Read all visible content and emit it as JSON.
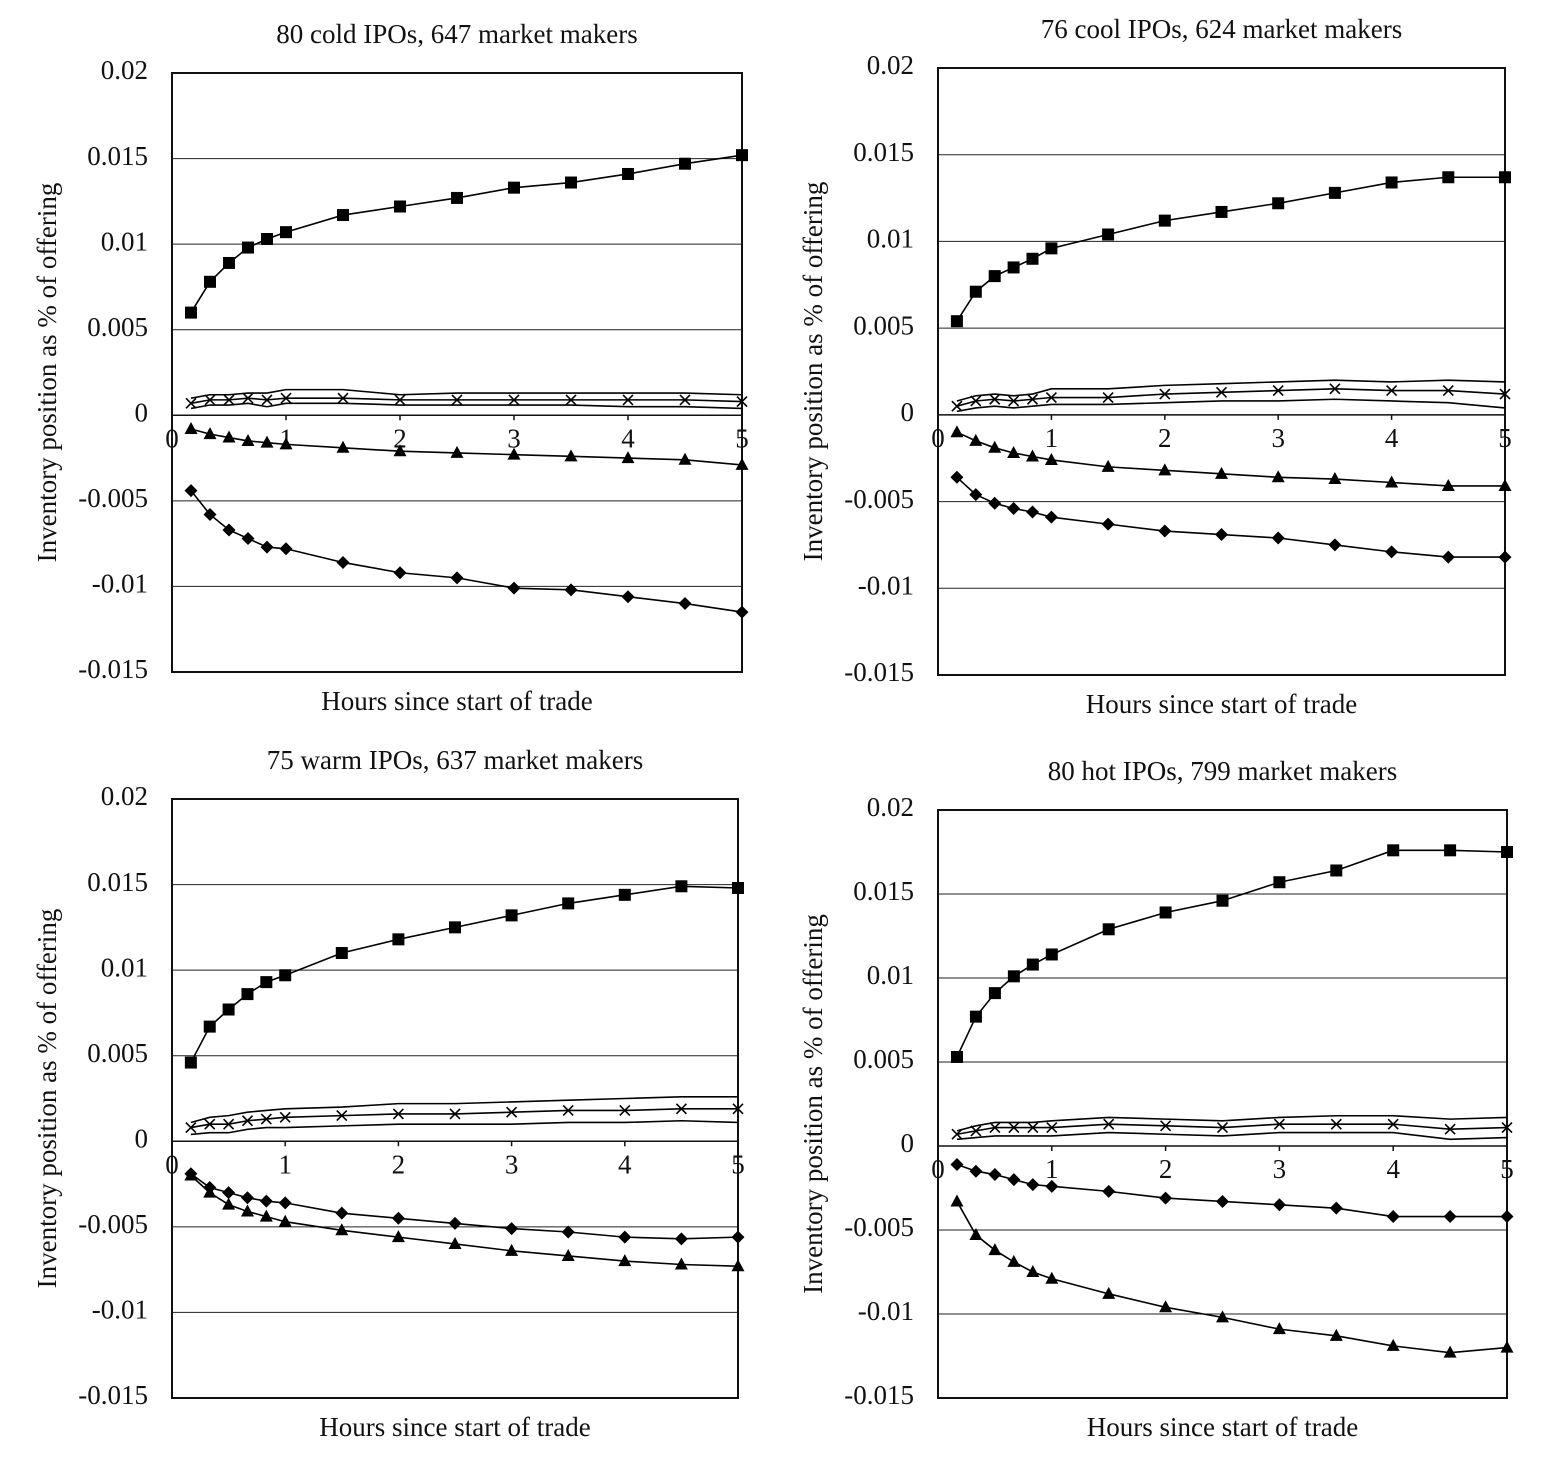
{
  "chart_data": [
    {
      "type": "line",
      "title": "80 cold IPOs, 647 market makers",
      "x_label": "Hours since start of trade",
      "y_label": "Inventory position as % of offering",
      "x": [
        0.1667,
        0.3333,
        0.5,
        0.6667,
        0.8333,
        1,
        1.5,
        2,
        2.5,
        3,
        3.5,
        4,
        4.5,
        5
      ],
      "xlim": [
        0,
        5
      ],
      "xticks": [
        0,
        1,
        2,
        3,
        4,
        5
      ],
      "ylim": [
        -0.015,
        0.02
      ],
      "yticks": [
        0.02,
        0.015,
        0.01,
        0.005,
        0,
        -0.005,
        -0.01,
        -0.015
      ],
      "grid": true,
      "series": [
        {
          "marker": "square",
          "color": "#000000",
          "values": [
            0.006,
            0.0078,
            0.0089,
            0.0098,
            0.0103,
            0.0107,
            0.0117,
            0.0122,
            0.0127,
            0.0133,
            0.0136,
            0.0141,
            0.0147,
            0.0152
          ]
        },
        {
          "marker": "triangle",
          "color": "#000000",
          "values": [
            -0.0008,
            -0.0011,
            -0.0013,
            -0.0015,
            -0.0016,
            -0.0017,
            -0.0019,
            -0.0021,
            -0.0022,
            -0.0023,
            -0.0024,
            -0.0025,
            -0.0026,
            -0.0029
          ]
        },
        {
          "marker": "diamond",
          "color": "#000000",
          "values": [
            -0.0044,
            -0.0058,
            -0.0067,
            -0.0072,
            -0.0077,
            -0.0078,
            -0.0086,
            -0.0092,
            -0.0095,
            -0.0101,
            -0.0102,
            -0.0106,
            -0.011,
            -0.0115
          ]
        },
        {
          "marker": "x",
          "color": "#000000",
          "values": [
            0.0007,
            0.0009,
            0.0009,
            0.001,
            0.0009,
            0.001,
            0.001,
            0.0009,
            0.0009,
            0.0009,
            0.0009,
            0.0009,
            0.0009,
            0.0008
          ]
        },
        {
          "marker": "none",
          "color": "#000000",
          "values": [
            0.001,
            0.0012,
            0.0012,
            0.0013,
            0.0013,
            0.0015,
            0.0015,
            0.0012,
            0.0013,
            0.0013,
            0.0013,
            0.0013,
            0.0013,
            0.0012
          ]
        },
        {
          "marker": "none",
          "color": "#000000",
          "values": [
            0.0004,
            0.0006,
            0.0006,
            0.0007,
            0.0005,
            0.0007,
            0.0007,
            0.0006,
            0.0006,
            0.0006,
            0.0006,
            0.0005,
            0.0005,
            0.0004
          ]
        }
      ]
    },
    {
      "type": "line",
      "title": "76 cool IPOs, 624 market makers",
      "x_label": "Hours since start of trade",
      "y_label": "Inventory position as % of offering",
      "x": [
        0.1667,
        0.3333,
        0.5,
        0.6667,
        0.8333,
        1,
        1.5,
        2,
        2.5,
        3,
        3.5,
        4,
        4.5,
        5
      ],
      "xlim": [
        0,
        5
      ],
      "xticks": [
        0,
        1,
        2,
        3,
        4,
        5
      ],
      "ylim": [
        -0.015,
        0.02
      ],
      "yticks": [
        0.02,
        0.015,
        0.01,
        0.005,
        0,
        -0.005,
        -0.01,
        -0.015
      ],
      "grid": true,
      "series": [
        {
          "marker": "square",
          "color": "#000000",
          "values": [
            0.0054,
            0.0071,
            0.008,
            0.0085,
            0.009,
            0.0096,
            0.0104,
            0.0112,
            0.0117,
            0.0122,
            0.0128,
            0.0134,
            0.0137,
            0.0137
          ]
        },
        {
          "marker": "triangle",
          "color": "#000000",
          "values": [
            -0.001,
            -0.0015,
            -0.0019,
            -0.0022,
            -0.0024,
            -0.0026,
            -0.003,
            -0.0032,
            -0.0034,
            -0.0036,
            -0.0037,
            -0.0039,
            -0.0041,
            -0.0041
          ]
        },
        {
          "marker": "diamond",
          "color": "#000000",
          "values": [
            -0.0036,
            -0.0046,
            -0.0051,
            -0.0054,
            -0.0056,
            -0.0059,
            -0.0063,
            -0.0067,
            -0.0069,
            -0.0071,
            -0.0075,
            -0.0079,
            -0.0082,
            -0.0082
          ]
        },
        {
          "marker": "x",
          "color": "#000000",
          "values": [
            0.0005,
            0.0008,
            0.0009,
            0.0008,
            0.0009,
            0.001,
            0.001,
            0.0012,
            0.0013,
            0.0014,
            0.0015,
            0.0014,
            0.0014,
            0.0012
          ]
        },
        {
          "marker": "none",
          "color": "#000000",
          "values": [
            0.0008,
            0.0011,
            0.0012,
            0.0011,
            0.0012,
            0.0015,
            0.0015,
            0.0017,
            0.0018,
            0.0019,
            0.002,
            0.0019,
            0.002,
            0.0019
          ]
        },
        {
          "marker": "none",
          "color": "#000000",
          "values": [
            0.0002,
            0.0004,
            0.0005,
            0.0004,
            0.0005,
            0.0006,
            0.0006,
            0.0007,
            0.0008,
            0.0008,
            0.0009,
            0.0008,
            0.0007,
            0.0004
          ]
        }
      ]
    },
    {
      "type": "line",
      "title": "75 warm IPOs, 637 market makers",
      "x_label": "Hours since start of trade",
      "y_label": "Inventory position as % of offering",
      "x": [
        0.1667,
        0.3333,
        0.5,
        0.6667,
        0.8333,
        1,
        1.5,
        2,
        2.5,
        3,
        3.5,
        4,
        4.5,
        5
      ],
      "xlim": [
        0,
        5
      ],
      "xticks": [
        0,
        1,
        2,
        3,
        4,
        5
      ],
      "ylim": [
        -0.015,
        0.02
      ],
      "yticks": [
        0.02,
        0.015,
        0.01,
        0.005,
        0,
        -0.005,
        -0.01,
        -0.015
      ],
      "grid": true,
      "series": [
        {
          "marker": "square",
          "color": "#000000",
          "values": [
            0.0046,
            0.0067,
            0.0077,
            0.0086,
            0.0093,
            0.0097,
            0.011,
            0.0118,
            0.0125,
            0.0132,
            0.0139,
            0.0144,
            0.0149,
            0.0148
          ]
        },
        {
          "marker": "triangle",
          "color": "#000000",
          "values": [
            -0.002,
            -0.003,
            -0.0037,
            -0.0041,
            -0.0044,
            -0.0047,
            -0.0052,
            -0.0056,
            -0.006,
            -0.0064,
            -0.0067,
            -0.007,
            -0.0072,
            -0.0073
          ]
        },
        {
          "marker": "diamond",
          "color": "#000000",
          "values": [
            -0.0019,
            -0.0027,
            -0.003,
            -0.0033,
            -0.0035,
            -0.0036,
            -0.0042,
            -0.0045,
            -0.0048,
            -0.0051,
            -0.0053,
            -0.0056,
            -0.0057,
            -0.0056
          ]
        },
        {
          "marker": "x",
          "color": "#000000",
          "values": [
            0.0008,
            0.001,
            0.001,
            0.0012,
            0.0013,
            0.0014,
            0.0015,
            0.0016,
            0.0016,
            0.0017,
            0.0018,
            0.0018,
            0.0019,
            0.0019
          ]
        },
        {
          "marker": "none",
          "color": "#000000",
          "values": [
            0.0011,
            0.0014,
            0.0015,
            0.0017,
            0.0018,
            0.0019,
            0.002,
            0.0022,
            0.0022,
            0.0023,
            0.0024,
            0.0025,
            0.0026,
            0.0026
          ]
        },
        {
          "marker": "none",
          "color": "#000000",
          "values": [
            0.0004,
            0.0005,
            0.0005,
            0.0007,
            0.0008,
            0.0008,
            0.0009,
            0.001,
            0.001,
            0.001,
            0.0011,
            0.0011,
            0.0012,
            0.0011
          ]
        }
      ]
    },
    {
      "type": "line",
      "title": "80 hot IPOs, 799 market makers",
      "x_label": "Hours since start of trade",
      "y_label": "Inventory position as % of offering",
      "x": [
        0.1667,
        0.3333,
        0.5,
        0.6667,
        0.8333,
        1,
        1.5,
        2,
        2.5,
        3,
        3.5,
        4,
        4.5,
        5
      ],
      "xlim": [
        0,
        5
      ],
      "xticks": [
        0,
        1,
        2,
        3,
        4,
        5
      ],
      "ylim": [
        -0.015,
        0.02
      ],
      "yticks": [
        0.02,
        0.015,
        0.01,
        0.005,
        0,
        -0.005,
        -0.01,
        -0.015
      ],
      "grid": true,
      "series": [
        {
          "marker": "square",
          "color": "#000000",
          "values": [
            0.0053,
            0.0077,
            0.0091,
            0.0101,
            0.0108,
            0.0114,
            0.0129,
            0.0139,
            0.0146,
            0.0157,
            0.0164,
            0.0176,
            0.0176,
            0.0175
          ]
        },
        {
          "marker": "triangle",
          "color": "#000000",
          "values": [
            -0.0033,
            -0.0053,
            -0.0062,
            -0.0069,
            -0.0075,
            -0.0079,
            -0.0088,
            -0.0096,
            -0.0102,
            -0.0109,
            -0.0113,
            -0.0119,
            -0.0123,
            -0.012
          ]
        },
        {
          "marker": "diamond",
          "color": "#000000",
          "values": [
            -0.0011,
            -0.0015,
            -0.0017,
            -0.002,
            -0.0023,
            -0.0024,
            -0.0027,
            -0.0031,
            -0.0033,
            -0.0035,
            -0.0037,
            -0.0042,
            -0.0042,
            -0.0042
          ]
        },
        {
          "marker": "x",
          "color": "#000000",
          "values": [
            0.0007,
            0.0009,
            0.0011,
            0.0011,
            0.0011,
            0.0011,
            0.0013,
            0.0012,
            0.0011,
            0.0013,
            0.0013,
            0.0013,
            0.001,
            0.0011
          ]
        },
        {
          "marker": "none",
          "color": "#000000",
          "values": [
            0.0009,
            0.0012,
            0.0014,
            0.0014,
            0.0014,
            0.0015,
            0.0017,
            0.0016,
            0.0015,
            0.0017,
            0.0018,
            0.0018,
            0.0016,
            0.0017
          ]
        },
        {
          "marker": "none",
          "color": "#000000",
          "values": [
            0.0004,
            0.0005,
            0.0006,
            0.0006,
            0.0006,
            0.0006,
            0.0008,
            0.0007,
            0.0006,
            0.0008,
            0.0008,
            0.0008,
            0.0004,
            0.0005
          ]
        }
      ]
    }
  ]
}
